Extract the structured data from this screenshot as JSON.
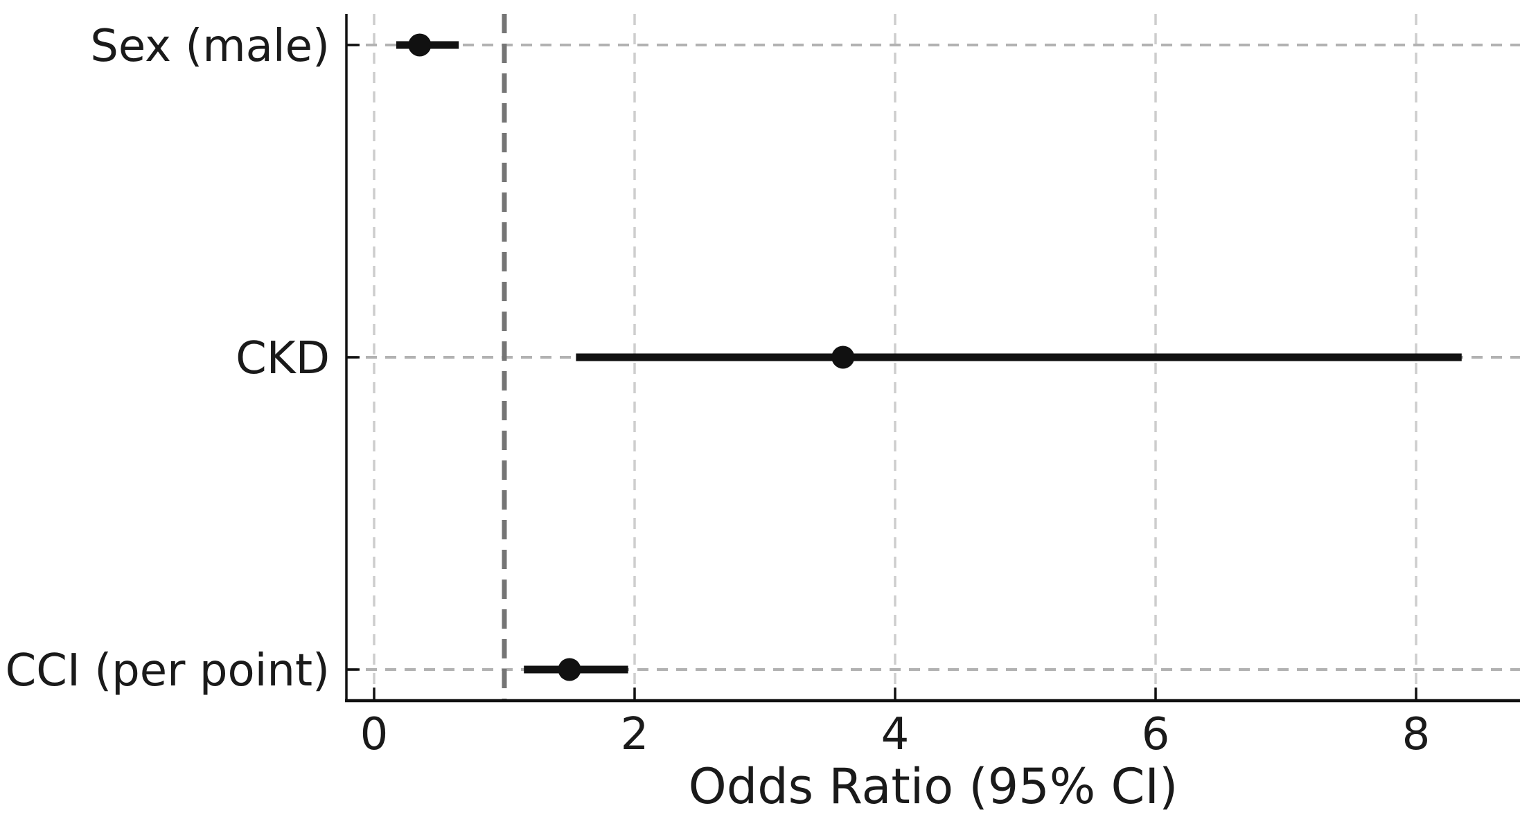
{
  "chart_data": {
    "type": "scatter",
    "subtype": "forest-plot",
    "title": "",
    "xlabel": "Odds Ratio (95% CI)",
    "ylabel": "",
    "x_ticks": [
      0,
      2,
      4,
      6,
      8
    ],
    "xlim": [
      -0.21,
      8.8
    ],
    "reference_line_x": 1,
    "grid": true,
    "legend_position": "none",
    "rows": [
      {
        "label": "Sex (male)",
        "or": 0.35,
        "ci_low": 0.17,
        "ci_high": 0.65
      },
      {
        "label": "CKD",
        "or": 3.6,
        "ci_low": 1.55,
        "ci_high": 8.35
      },
      {
        "label": "CCI (per point)",
        "or": 1.5,
        "ci_low": 1.15,
        "ci_high": 1.95
      }
    ],
    "colors": {
      "marker": "#111111",
      "ci_line": "#111111",
      "reference_line": "#757575",
      "gridline": "#cdcdcd",
      "row_gridline": "#b2b2b2",
      "axis": "#111111",
      "text": "#1a1a1a",
      "background": "#ffffff"
    }
  }
}
